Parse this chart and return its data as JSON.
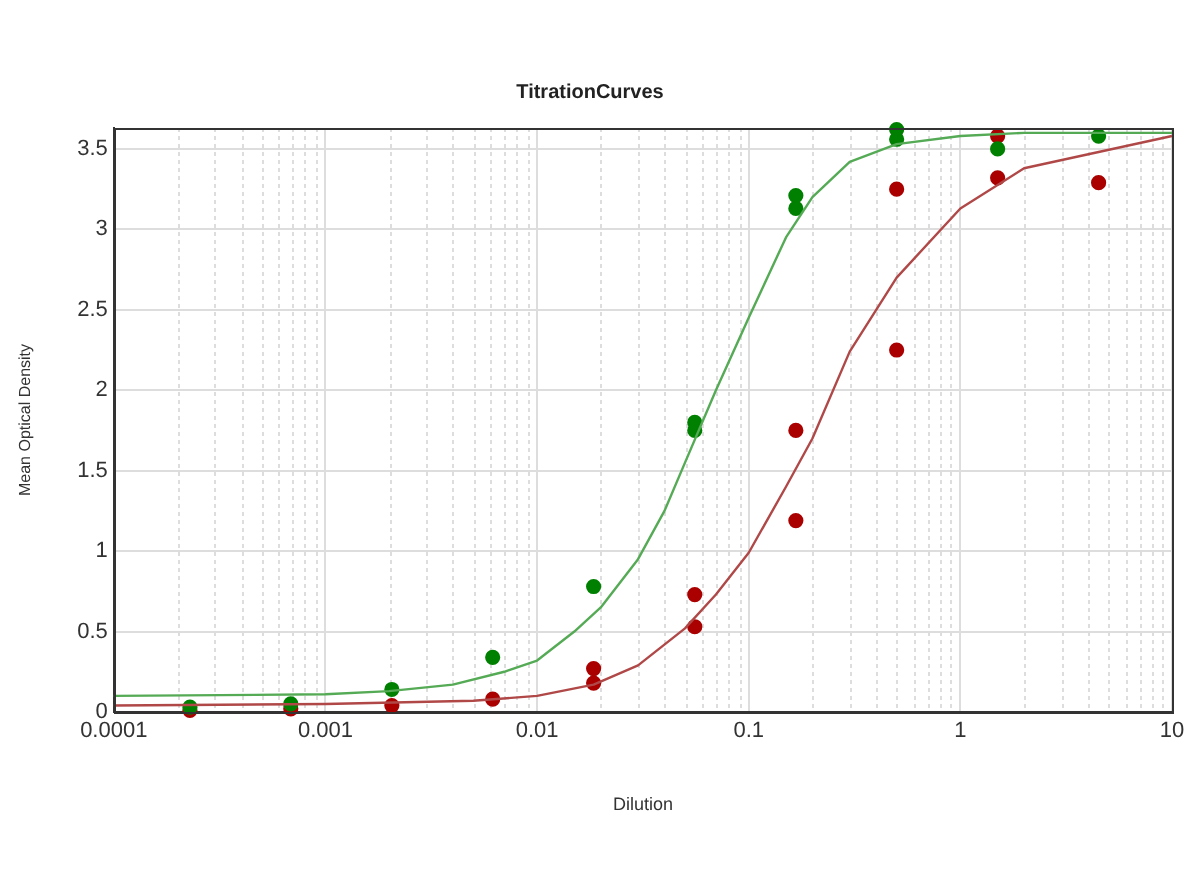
{
  "chart_data": {
    "type": "scatter",
    "title": "TitrationCurves",
    "xlabel": "Dilution",
    "ylabel": "Mean Optical Density",
    "log": "x",
    "grid": true,
    "legend": false,
    "marker": "circle",
    "xlim": [
      0.0001,
      10
    ],
    "xticks": [
      0.0001,
      0.001,
      0.01,
      0.1,
      1,
      10
    ],
    "ylim": [
      0,
      3.63
    ],
    "yticks": [
      0,
      0.5,
      1,
      1.5,
      2,
      2.5,
      3,
      3.5
    ],
    "series": [
      {
        "type": "line",
        "color": "#55aa55",
        "marker": "none",
        "x": [
          0.0001,
          0.001,
          0.002,
          0.004,
          0.007,
          0.01,
          0.015,
          0.02,
          0.03,
          0.04,
          0.05,
          0.07,
          0.1,
          0.15,
          0.2,
          0.3,
          0.5,
          1,
          2,
          10
        ],
        "values": [
          0.1,
          0.11,
          0.13,
          0.17,
          0.25,
          0.32,
          0.5,
          0.65,
          0.95,
          1.25,
          1.55,
          2.0,
          2.45,
          2.95,
          3.2,
          3.42,
          3.53,
          3.58,
          3.6,
          3.6
        ]
      },
      {
        "type": "line",
        "color": "#b04848",
        "marker": "none",
        "x": [
          0.0001,
          0.001,
          0.005,
          0.01,
          0.0185,
          0.03,
          0.05,
          0.07,
          0.1,
          0.15,
          0.2,
          0.3,
          0.5,
          1,
          2,
          10
        ],
        "values": [
          0.04,
          0.05,
          0.07,
          0.1,
          0.17,
          0.29,
          0.52,
          0.73,
          0.99,
          1.4,
          1.7,
          2.24,
          2.7,
          3.13,
          3.38,
          3.58
        ]
      },
      {
        "color": "#008000",
        "x": [
          0.000229,
          0.000686,
          0.00206,
          0.00617,
          0.0185,
          0.0556,
          0.0556,
          0.167,
          0.167,
          0.5,
          0.5,
          1.5,
          4.5
        ],
        "values": [
          0.03,
          0.05,
          0.14,
          0.34,
          0.78,
          1.8,
          1.75,
          3.21,
          3.13,
          3.62,
          3.56,
          3.5,
          3.58
        ]
      },
      {
        "color": "#aa0000",
        "x": [
          0.000229,
          0.000686,
          0.00206,
          0.00617,
          0.0185,
          0.0185,
          0.0556,
          0.0556,
          0.167,
          0.167,
          0.5,
          0.5,
          1.5,
          1.5,
          4.5
        ],
        "values": [
          0.01,
          0.02,
          0.04,
          0.08,
          0.27,
          0.18,
          0.73,
          0.53,
          1.75,
          1.19,
          3.25,
          2.25,
          3.58,
          3.32,
          3.29
        ]
      }
    ]
  }
}
